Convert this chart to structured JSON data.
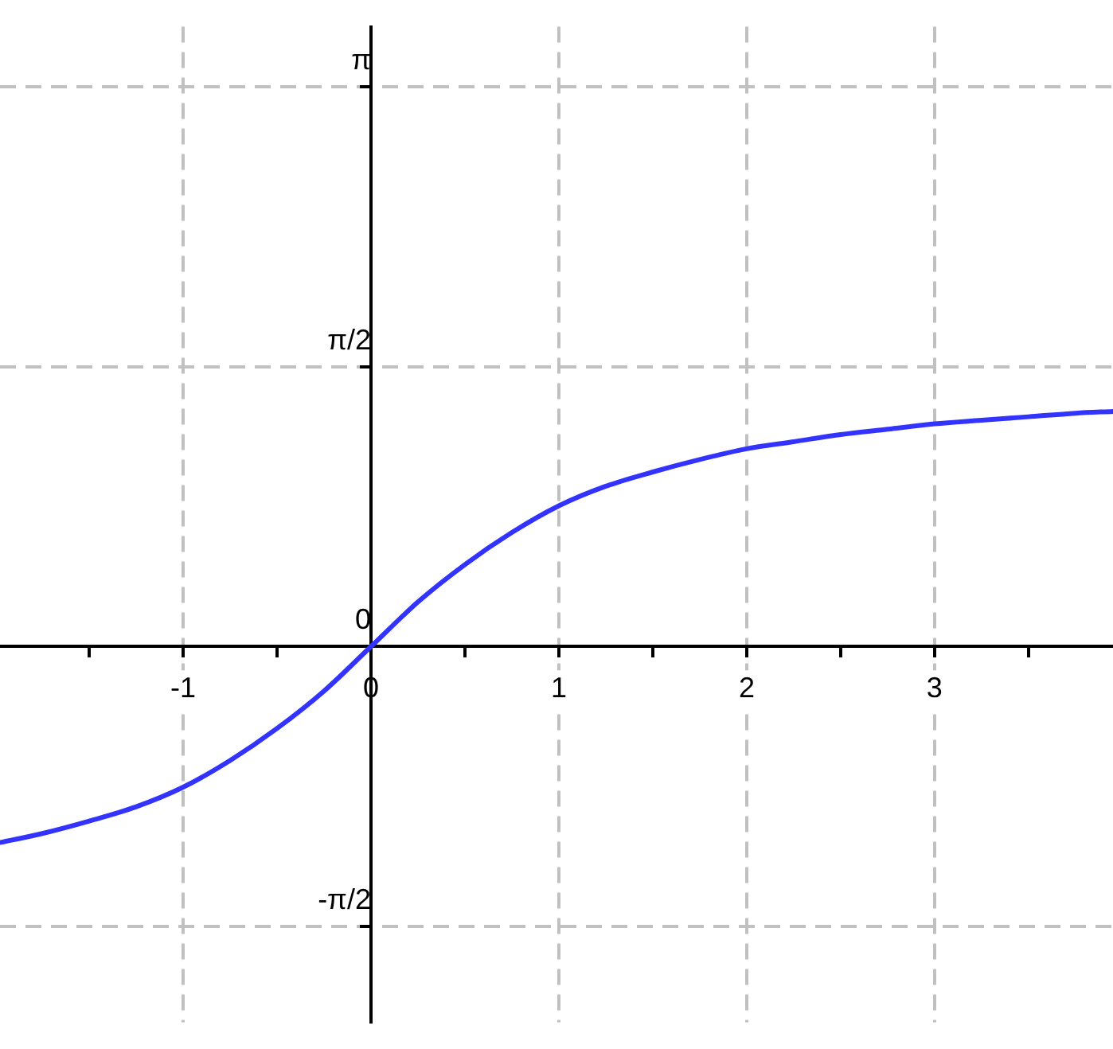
{
  "chart_data": {
    "type": "line",
    "x": [
      -1.97,
      -1.75,
      -1.5,
      -1.25,
      -1,
      -0.75,
      -0.5,
      -0.25,
      0,
      0.25,
      0.5,
      0.75,
      1,
      1.25,
      1.5,
      1.75,
      2,
      2.25,
      2.5,
      2.75,
      3,
      3.25,
      3.5,
      3.75,
      3.95
    ],
    "series": [
      {
        "color": "#3333ff",
        "values": [
          -1.1,
          -1.05,
          -0.98,
          -0.9,
          -0.79,
          -0.64,
          -0.46,
          -0.25,
          0,
          0.25,
          0.46,
          0.64,
          0.79,
          0.9,
          0.98,
          1.05,
          1.11,
          1.15,
          1.19,
          1.22,
          1.25,
          1.27,
          1.29,
          1.31,
          1.32
        ]
      }
    ],
    "xlim": [
      -1.975,
      3.95
    ],
    "ylim": [
      -2.11,
      3.48
    ],
    "xticks": [
      {
        "value": -1.5,
        "label": null
      },
      -1,
      {
        "value": -0.5,
        "label": null
      },
      0,
      {
        "value": 0.5,
        "label": null
      },
      1,
      {
        "value": 1.5,
        "label": null
      },
      2,
      {
        "value": 2.5,
        "label": null
      },
      3,
      {
        "value": 3.5,
        "label": null
      }
    ],
    "yticks": [
      {
        "value": -1.5708,
        "label": "-π/2"
      },
      {
        "value": 0,
        "label": "0"
      },
      {
        "value": 1.5708,
        "label": "π/2"
      },
      {
        "value": 3.1416,
        "label": "π"
      }
    ],
    "grid": true,
    "legend": false,
    "marker": "none",
    "line_style": "solid"
  }
}
